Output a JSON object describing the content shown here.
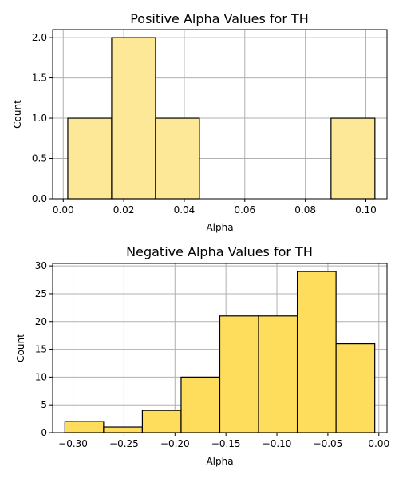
{
  "chart_data": [
    {
      "type": "bar",
      "title": "Positive Alpha Values for TH",
      "xlabel": "Alpha",
      "ylabel": "Count",
      "bar_color": "#FDE897",
      "grid": true,
      "xlim": [
        -0.0035,
        0.107
      ],
      "ylim": [
        0,
        2.1
      ],
      "xticks": [
        0.0,
        0.02,
        0.04,
        0.06,
        0.08,
        0.1
      ],
      "xtick_labels": [
        "0.00",
        "0.02",
        "0.04",
        "0.06",
        "0.08",
        "0.10"
      ],
      "yticks": [
        0.0,
        0.5,
        1.0,
        1.5,
        2.0
      ],
      "ytick_labels": [
        "0.0",
        "0.5",
        "1.0",
        "1.5",
        "2.0"
      ],
      "bins": [
        {
          "x0": 0.0015,
          "x1": 0.016,
          "count": 1
        },
        {
          "x0": 0.016,
          "x1": 0.0305,
          "count": 2
        },
        {
          "x0": 0.0305,
          "x1": 0.045,
          "count": 1
        },
        {
          "x0": 0.045,
          "x1": 0.0595,
          "count": 0
        },
        {
          "x0": 0.0595,
          "x1": 0.074,
          "count": 0
        },
        {
          "x0": 0.074,
          "x1": 0.0885,
          "count": 0
        },
        {
          "x0": 0.0885,
          "x1": 0.103,
          "count": 1
        }
      ]
    },
    {
      "type": "bar",
      "title": "Negative Alpha Values for TH",
      "xlabel": "Alpha",
      "ylabel": "Count",
      "bar_color": "#FEDD5C",
      "grid": true,
      "xlim": [
        -0.32,
        0.008
      ],
      "ylim": [
        0,
        30.45
      ],
      "xticks": [
        -0.3,
        -0.25,
        -0.2,
        -0.15,
        -0.1,
        -0.05,
        0.0
      ],
      "xtick_labels": [
        "−0.30",
        "−0.25",
        "−0.20",
        "−0.15",
        "−0.10",
        "−0.05",
        "0.00"
      ],
      "yticks": [
        0,
        5,
        10,
        15,
        20,
        25,
        30
      ],
      "ytick_labels": [
        "0",
        "5",
        "10",
        "15",
        "20",
        "25",
        "30"
      ],
      "bins": [
        {
          "x0": -0.308,
          "x1": -0.27,
          "count": 2
        },
        {
          "x0": -0.27,
          "x1": -0.232,
          "count": 1
        },
        {
          "x0": -0.232,
          "x1": -0.194,
          "count": 4
        },
        {
          "x0": -0.194,
          "x1": -0.156,
          "count": 10
        },
        {
          "x0": -0.156,
          "x1": -0.118,
          "count": 21
        },
        {
          "x0": -0.118,
          "x1": -0.08,
          "count": 21
        },
        {
          "x0": -0.08,
          "x1": -0.042,
          "count": 29
        },
        {
          "x0": -0.042,
          "x1": -0.004,
          "count": 16
        }
      ]
    }
  ]
}
